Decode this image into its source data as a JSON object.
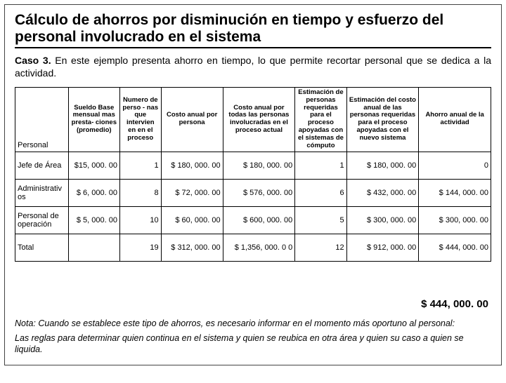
{
  "title": "Cálculo de ahorros por disminución en tiempo y esfuerzo del personal involucrado en el sistema",
  "caso_label": "Caso 3.",
  "caso_text": "En este ejemplo presenta ahorro en tiempo, lo que permite recortar personal que se dedica a la actividad.",
  "headers": {
    "c0": "Personal",
    "c1": "Sueldo Base mensual mas presta- ciones (promedio)",
    "c2": "Numero de perso - nas que intervien en en el proceso",
    "c3": "Costo anual por persona",
    "c4": "Costo anual por todas las personas involucradas en el proceso actual",
    "c5": "Estimación de personas requeridas para el proceso apoyadas con el sistemas de cómputo",
    "c6": "Estimación del costo anual de las personas requeridas para el proceso apoyadas con el nuevo sistema",
    "c7": "Ahorro anual de la actividad"
  },
  "rows": [
    {
      "label": "Jefe de Área",
      "c1": "$15, 000. 00",
      "c2": "1",
      "c3": "$ 180, 000. 00",
      "c4": "$ 180, 000. 00",
      "c5": "1",
      "c6": "$ 180, 000. 00",
      "c7": "0"
    },
    {
      "label": "Administrativ os",
      "c1": "$ 6, 000. 00",
      "c2": "8",
      "c3": "$ 72, 000. 00",
      "c4": "$ 576, 000. 00",
      "c5": "6",
      "c6": "$ 432, 000. 00",
      "c7": "$ 144, 000. 00"
    },
    {
      "label": "Personal de operación",
      "c1": "$ 5, 000. 00",
      "c2": "10",
      "c3": "$ 60, 000. 00",
      "c4": "$ 600, 000. 00",
      "c5": "5",
      "c6": "$ 300, 000. 00",
      "c7": "$ 300, 000. 00"
    },
    {
      "label": "Total",
      "c1": "",
      "c2": "19",
      "c3": "$ 312, 000. 00",
      "c4": "$ 1,356, 000. 0 0",
      "c5": "12",
      "c6": "$ 912, 000. 00",
      "c7": "$ 444, 000. 00"
    }
  ],
  "note1": "Nota: Cuando se establece este tipo de ahorros, es necesario informar en el momento más oportuno al personal:",
  "note2": "Las reglas para determinar quien continua en el sistema y quien se reubica en otra área y quien su caso a quien se liquida.",
  "highlight_total": "$ 444, 000. 00"
}
